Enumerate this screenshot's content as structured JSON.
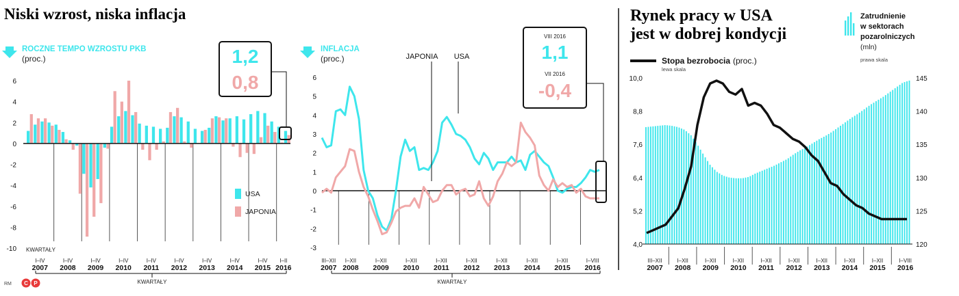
{
  "colors": {
    "usa": "#3ee6ec",
    "japan": "#f0a8a8",
    "black": "#111111",
    "grid": "#bbbbbb"
  },
  "footer": {
    "credit": "RM"
  },
  "chart_data": [
    {
      "type": "bar",
      "title": "Niski wzrost, niska inflacja",
      "subtitle": "ROCZNE TEMPO WZROSTU PKB",
      "unit": "(proc.)",
      "xlabel": "KWARTAŁY",
      "axis_caption": "KWARTAŁY",
      "ylim": [
        -10,
        6
      ],
      "yticks": [
        "6",
        "4",
        "2",
        "0",
        "-2",
        "-4",
        "-6",
        "-8",
        "-10"
      ],
      "year_labels": [
        "2007",
        "2008",
        "2009",
        "2010",
        "2011",
        "2012",
        "2013",
        "2014",
        "2015",
        "2016"
      ],
      "quarter_labels": [
        "I–IV",
        "I–IV",
        "I–IV",
        "I–IV",
        "I–IV",
        "I–IV",
        "I–IV",
        "I–IV",
        "I–IV",
        "I–II"
      ],
      "legend": [
        "USA",
        "JAPONIA"
      ],
      "callout": {
        "usa": "1,2",
        "japan": "0,8"
      },
      "series": [
        {
          "name": "USA",
          "values": [
            1.2,
            1.8,
            2.1,
            2.0,
            1.8,
            1.1,
            0.3,
            -0.2,
            -2.9,
            -4.2,
            -3.4,
            -0.4,
            1.6,
            2.6,
            3.1,
            2.7,
            1.9,
            1.7,
            1.6,
            1.4,
            1.5,
            2.6,
            2.5,
            2.1,
            1.4,
            1.2,
            1.5,
            2.6,
            2.2,
            2.4,
            2.6,
            2.3,
            2.8,
            3.1,
            2.9,
            2.1,
            1.6,
            1.2
          ]
        },
        {
          "name": "JAPONIA",
          "values": [
            2.8,
            2.4,
            2.4,
            1.7,
            1.3,
            0.4,
            -0.6,
            -4.8,
            -8.9,
            -7.0,
            -5.7,
            -0.5,
            5.0,
            4.0,
            6.0,
            3.0,
            -0.6,
            -1.6,
            -0.6,
            0.2,
            3.0,
            3.4,
            0.2,
            -0.4,
            0.0,
            1.3,
            2.4,
            2.5,
            2.4,
            -0.3,
            -1.3,
            -0.9,
            -1.0,
            0.6,
            1.7,
            1.1,
            0.1,
            0.8
          ]
        }
      ]
    },
    {
      "type": "line",
      "title": "INFLACJA",
      "unit": "(proc.)",
      "xlabel": "KWARTAŁY",
      "ylim": [
        -3,
        6
      ],
      "yticks": [
        "6",
        "5",
        "4",
        "3",
        "2",
        "1",
        "0",
        "-1",
        "-2",
        "-3"
      ],
      "year_labels": [
        "2007",
        "2008",
        "2009",
        "2010",
        "2011",
        "2012",
        "2013",
        "2014",
        "2015",
        "2016"
      ],
      "quarter_labels": [
        "III–XII",
        "I–XII",
        "I–XII",
        "I–XII",
        "I–XII",
        "I–XII",
        "I–XII",
        "I–XII",
        "I–XII",
        "I–VIII"
      ],
      "annotations": [
        "JAPONIA",
        "USA"
      ],
      "callout": {
        "usa_period": "VIII 2016",
        "usa_value": "1,1",
        "japan_period": "VII 2016",
        "japan_value": "-0,4"
      },
      "x_start": "2007-07",
      "x_end": "2016-08",
      "series": [
        {
          "name": "USA",
          "values": [
            2.8,
            2.3,
            2.4,
            4.2,
            4.3,
            4.0,
            5.5,
            5.0,
            3.8,
            1.1,
            0.0,
            -0.4,
            -1.3,
            -1.9,
            -2.1,
            -1.5,
            0.0,
            1.8,
            2.7,
            2.1,
            2.3,
            1.1,
            1.2,
            1.1,
            1.5,
            2.1,
            3.6,
            3.9,
            3.5,
            3.0,
            2.9,
            2.7,
            2.3,
            1.7,
            1.4,
            2.0,
            1.7,
            1.1,
            1.5,
            1.5,
            1.5,
            1.8,
            1.5,
            1.6,
            1.1,
            1.9,
            2.1,
            1.8,
            1.5,
            1.3,
            0.7,
            0.0,
            -0.1,
            0.1,
            0.2,
            0.2,
            0.4,
            0.7,
            1.1,
            1.0,
            1.1
          ]
        },
        {
          "name": "JAPONIA",
          "values": [
            -0.1,
            0.1,
            -0.1,
            0.7,
            1.0,
            1.3,
            2.2,
            2.1,
            1.0,
            0.2,
            -0.3,
            -1.0,
            -1.6,
            -2.3,
            -2.2,
            -1.7,
            -1.1,
            -0.9,
            -0.8,
            -0.8,
            -0.4,
            -0.9,
            0.2,
            -0.2,
            -0.6,
            -0.5,
            0.0,
            0.3,
            0.3,
            -0.2,
            0.0,
            0.1,
            -0.3,
            -0.2,
            0.5,
            -0.4,
            -0.8,
            -0.3,
            0.5,
            0.9,
            1.5,
            1.3,
            1.5,
            3.6,
            3.1,
            2.8,
            2.4,
            0.8,
            0.3,
            0.0,
            0.6,
            0.2,
            0.4,
            0.2,
            0.3,
            -0.1,
            0.1,
            -0.3,
            -0.4,
            -0.4,
            -0.4
          ]
        }
      ]
    },
    {
      "type": "bar+line",
      "title": "Rynek pracy w USA jest w dobrej kondycji",
      "legend_bars": "Zatrudnienie w sektorach pozarolniczych",
      "legend_bars_unit": "(mln)",
      "legend_bars_axis": "prawa skala",
      "legend_line": "Stopa bezrobocia",
      "legend_line_unit": "(proc.)",
      "legend_line_axis": "lewa skala",
      "ylim_left": [
        4.0,
        10.0
      ],
      "yticks_left": [
        "10,0",
        "8,8",
        "7,6",
        "6,4",
        "5,2",
        "4,0"
      ],
      "ylim_right": [
        120,
        145
      ],
      "yticks_right": [
        "145",
        "140",
        "135",
        "130",
        "125",
        "120"
      ],
      "year_labels": [
        "2007",
        "2008",
        "2009",
        "2010",
        "2011",
        "2012",
        "2013",
        "2014",
        "2015",
        "2016"
      ],
      "quarter_labels": [
        "III–XII",
        "I–XII",
        "I–XII",
        "I–XII",
        "I–XII",
        "I–XII",
        "I–XII",
        "I–XII",
        "I–XII",
        "I–VIII"
      ],
      "x_start": "2007-03",
      "x_end": "2016-08",
      "series": [
        {
          "name": "Zatrudnienie",
          "values": [
            137.6,
            137.7,
            137.8,
            137.9,
            137.8,
            137.6,
            137.2,
            136.4,
            135.0,
            133.4,
            131.9,
            130.9,
            130.3,
            130.0,
            129.9,
            129.9,
            130.1,
            130.6,
            131.0,
            131.4,
            131.8,
            132.3,
            132.8,
            133.5,
            134.1,
            134.6,
            135.2,
            135.8,
            136.3,
            136.9,
            137.6,
            138.3,
            139.0,
            139.6,
            140.3,
            141.0,
            141.6,
            142.2,
            142.9,
            143.6,
            144.3,
            144.6
          ]
        },
        {
          "name": "Stopa bezrobocia",
          "values": [
            4.4,
            4.5,
            4.6,
            4.7,
            5.0,
            5.3,
            6.0,
            6.8,
            8.3,
            9.3,
            9.8,
            9.9,
            9.8,
            9.5,
            9.4,
            9.6,
            9.0,
            9.1,
            9.0,
            8.7,
            8.3,
            8.2,
            8.0,
            7.8,
            7.7,
            7.5,
            7.2,
            7.0,
            6.6,
            6.2,
            6.1,
            5.8,
            5.6,
            5.4,
            5.3,
            5.1,
            5.0,
            4.9,
            4.9,
            4.9,
            4.9,
            4.9
          ]
        }
      ]
    }
  ]
}
